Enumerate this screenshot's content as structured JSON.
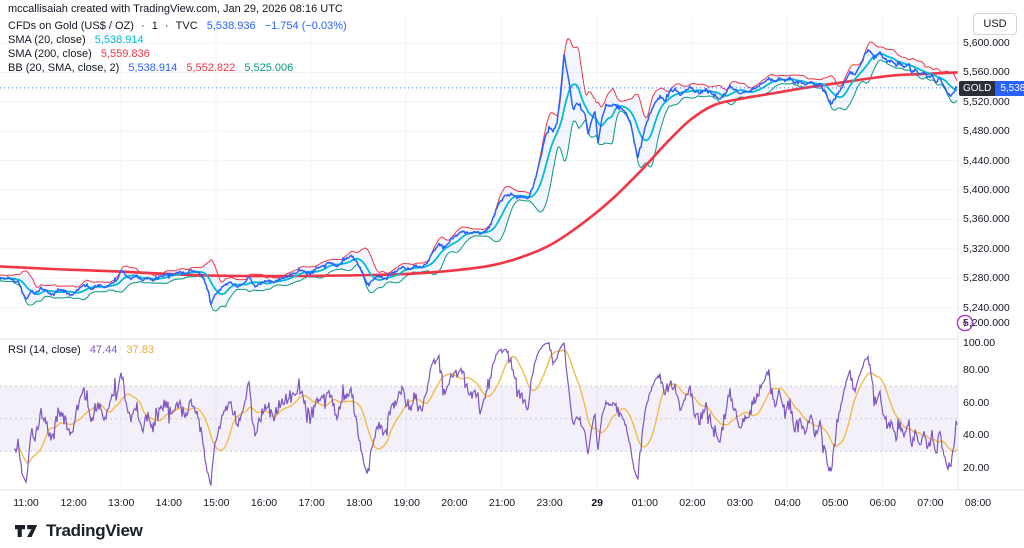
{
  "attribution": "mccallisaiah created with TradingView.com, Jan 29, 2026 08:16 UTC",
  "legend": {
    "main": {
      "title": "CFDs on Gold (US$ / OZ)",
      "separator": "·",
      "interval": "1",
      "exchange": "TVC",
      "price": "5,538.936",
      "change": "−1.754 (−0.03%)"
    },
    "sma20": {
      "label": "SMA (20, close)",
      "value": "5,538.914"
    },
    "sma200": {
      "label": "SMA (200, close)",
      "value": "5,559.836"
    },
    "bb": {
      "label": "BB (20, SMA, close, 2)",
      "basis": "5,538.914",
      "upper": "5,552.822",
      "lower": "5,525.006"
    },
    "rsi": {
      "label": "RSI (14, close)",
      "value": "47.44",
      "ma": "37.83"
    }
  },
  "price_axis": {
    "currency_button": "USD",
    "symbol_badge": "GOLD",
    "last_price_value": "5,538.936",
    "ticks": [
      "5,600.000",
      "5,560.000",
      "5,520.000",
      "5,480.000",
      "5,440.000",
      "5,400.000",
      "5,360.000",
      "5,320.000",
      "5,280.000",
      "5,240.000",
      "5,200.000"
    ]
  },
  "rsi_axis": {
    "ticks": [
      "100.00",
      "80.00",
      "60.00",
      "40.00",
      "20.00"
    ]
  },
  "time_axis": {
    "labels": [
      {
        "text": "11:00"
      },
      {
        "text": "12:00"
      },
      {
        "text": "13:00"
      },
      {
        "text": "14:00"
      },
      {
        "text": "15:00"
      },
      {
        "text": "16:00"
      },
      {
        "text": "17:00"
      },
      {
        "text": "18:00"
      },
      {
        "text": "19:00"
      },
      {
        "text": "20:00"
      },
      {
        "text": "21:00"
      },
      {
        "text": "23:00"
      },
      {
        "text": "29",
        "bold": true
      },
      {
        "text": "01:00"
      },
      {
        "text": "02:00"
      },
      {
        "text": "03:00"
      },
      {
        "text": "04:00"
      },
      {
        "text": "05:00"
      },
      {
        "text": "06:00"
      },
      {
        "text": "07:00"
      },
      {
        "text": "08:00"
      }
    ]
  },
  "footer": {
    "brand": "TradingView"
  },
  "colors": {
    "price_line": "#2962FF",
    "sma20": "#00BCD4",
    "sma200": "#F23645",
    "bb_upper": "#F23645",
    "bb_lower": "#089981",
    "bb_fill": "rgba(41,98,255,0.055)",
    "rsi_line": "#7E57C2",
    "rsi_ma": "#EFBD4C",
    "rsi_band_fill": "rgba(126,87,194,0.09)",
    "band_dash": "#C9CBD2",
    "grid": "#F0F3FA",
    "axis_border": "#E0E3EB",
    "badge_symbol_bg": "#2A2E39",
    "badge_price_bg": "#2962FF",
    "bolt": "#AB36C9"
  },
  "chart_data": {
    "type": "line",
    "title": "CFDs on Gold (US$ / OZ) · 1 · TVC",
    "ylabel": "USD",
    "last_price": 5538.936,
    "change": -1.754,
    "change_pct": -0.03,
    "price_ticks": [
      5600,
      5560,
      5520,
      5480,
      5440,
      5400,
      5360,
      5320,
      5280,
      5240,
      5200
    ],
    "rsi_ticks": [
      100,
      80,
      60,
      40,
      20
    ],
    "rsi_band": [
      30,
      70
    ],
    "rsi_last": 47.44,
    "rsi_ma_last": 37.83,
    "sma20_last": 5538.914,
    "sma200_last": 5559.836,
    "bb_last": {
      "basis": 5538.914,
      "upper": 5552.822,
      "lower": 5525.006
    },
    "x_labels": [
      "11:00",
      "12:00",
      "13:00",
      "14:00",
      "15:00",
      "16:00",
      "17:00",
      "18:00",
      "19:00",
      "20:00",
      "21:00",
      "23:00",
      "29",
      "01:00",
      "02:00",
      "03:00",
      "04:00",
      "05:00",
      "06:00",
      "07:00",
      "08:00"
    ],
    "indicators": [
      "SMA (20, close)",
      "SMA (200, close)",
      "BB (20, SMA, close, 2)",
      "RSI (14, close)"
    ],
    "price_anchors": [
      [
        0,
        5280
      ],
      [
        8,
        5280
      ],
      [
        14,
        5277
      ],
      [
        20,
        5270
      ],
      [
        24,
        5256
      ],
      [
        27,
        5251
      ],
      [
        31,
        5263
      ],
      [
        36,
        5259
      ],
      [
        41,
        5267
      ],
      [
        47,
        5262
      ],
      [
        53,
        5257
      ],
      [
        59,
        5265
      ],
      [
        65,
        5262
      ],
      [
        71,
        5257
      ],
      [
        77,
        5263
      ],
      [
        84,
        5270
      ],
      [
        91,
        5266
      ],
      [
        98,
        5271
      ],
      [
        105,
        5268
      ],
      [
        111,
        5273
      ],
      [
        117,
        5278
      ],
      [
        121,
        5292
      ],
      [
        125,
        5287
      ],
      [
        130,
        5279
      ],
      [
        136,
        5283
      ],
      [
        142,
        5277
      ],
      [
        148,
        5281
      ],
      [
        154,
        5277
      ],
      [
        160,
        5282
      ],
      [
        166,
        5286
      ],
      [
        172,
        5283
      ],
      [
        179,
        5288
      ],
      [
        186,
        5287
      ],
      [
        192,
        5291
      ],
      [
        198,
        5289
      ],
      [
        203,
        5282
      ],
      [
        208,
        5262
      ],
      [
        211,
        5243
      ],
      [
        214,
        5256
      ],
      [
        219,
        5263
      ],
      [
        225,
        5271
      ],
      [
        231,
        5274
      ],
      [
        237,
        5267
      ],
      [
        243,
        5272
      ],
      [
        249,
        5281
      ],
      [
        255,
        5269
      ],
      [
        261,
        5273
      ],
      [
        267,
        5277
      ],
      [
        274,
        5274
      ],
      [
        281,
        5280
      ],
      [
        288,
        5283
      ],
      [
        295,
        5287
      ],
      [
        302,
        5291
      ],
      [
        309,
        5287
      ],
      [
        316,
        5293
      ],
      [
        323,
        5297
      ],
      [
        330,
        5301
      ],
      [
        337,
        5296
      ],
      [
        344,
        5305
      ],
      [
        351,
        5311
      ],
      [
        357,
        5303
      ],
      [
        363,
        5285
      ],
      [
        368,
        5269
      ],
      [
        373,
        5278
      ],
      [
        379,
        5283
      ],
      [
        385,
        5279
      ],
      [
        391,
        5286
      ],
      [
        397,
        5291
      ],
      [
        403,
        5295
      ],
      [
        409,
        5292
      ],
      [
        415,
        5297
      ],
      [
        421,
        5294
      ],
      [
        427,
        5300
      ],
      [
        433,
        5315
      ],
      [
        439,
        5326
      ],
      [
        445,
        5321
      ],
      [
        451,
        5333
      ],
      [
        457,
        5339
      ],
      [
        463,
        5344
      ],
      [
        469,
        5340
      ],
      [
        475,
        5344
      ],
      [
        481,
        5341
      ],
      [
        487,
        5347
      ],
      [
        493,
        5362
      ],
      [
        499,
        5382
      ],
      [
        505,
        5391
      ],
      [
        511,
        5394
      ],
      [
        517,
        5389
      ],
      [
        523,
        5391
      ],
      [
        528,
        5387
      ],
      [
        534,
        5408
      ],
      [
        540,
        5441
      ],
      [
        545,
        5470
      ],
      [
        549,
        5486
      ],
      [
        553,
        5480
      ],
      [
        557,
        5490
      ],
      [
        561,
        5538
      ],
      [
        564,
        5585
      ],
      [
        567,
        5562
      ],
      [
        570,
        5538
      ],
      [
        573,
        5507
      ],
      [
        577,
        5519
      ],
      [
        581,
        5511
      ],
      [
        585,
        5502
      ],
      [
        588,
        5477
      ],
      [
        592,
        5497
      ],
      [
        595,
        5509
      ],
      [
        598,
        5464
      ],
      [
        602,
        5499
      ],
      [
        606,
        5515
      ],
      [
        611,
        5514
      ],
      [
        616,
        5517
      ],
      [
        621,
        5511
      ],
      [
        626,
        5506
      ],
      [
        631,
        5489
      ],
      [
        635,
        5461
      ],
      [
        638,
        5444
      ],
      [
        642,
        5468
      ],
      [
        646,
        5489
      ],
      [
        650,
        5504
      ],
      [
        655,
        5517
      ],
      [
        660,
        5527
      ],
      [
        665,
        5521
      ],
      [
        670,
        5533
      ],
      [
        675,
        5537
      ],
      [
        680,
        5529
      ],
      [
        685,
        5534
      ],
      [
        690,
        5541
      ],
      [
        695,
        5533
      ],
      [
        700,
        5532
      ],
      [
        705,
        5537
      ],
      [
        710,
        5534
      ],
      [
        715,
        5527
      ],
      [
        720,
        5523
      ],
      [
        725,
        5531
      ],
      [
        730,
        5541
      ],
      [
        735,
        5537
      ],
      [
        740,
        5531
      ],
      [
        745,
        5533
      ],
      [
        750,
        5535
      ],
      [
        755,
        5539
      ],
      [
        760,
        5543
      ],
      [
        765,
        5548
      ],
      [
        770,
        5552
      ],
      [
        775,
        5548
      ],
      [
        780,
        5553
      ],
      [
        785,
        5549
      ],
      [
        790,
        5552
      ],
      [
        795,
        5546
      ],
      [
        800,
        5548
      ],
      [
        805,
        5542
      ],
      [
        810,
        5547
      ],
      [
        815,
        5542
      ],
      [
        820,
        5545
      ],
      [
        825,
        5536
      ],
      [
        829,
        5521
      ],
      [
        832,
        5517
      ],
      [
        835,
        5526
      ],
      [
        839,
        5534
      ],
      [
        843,
        5543
      ],
      [
        847,
        5553
      ],
      [
        851,
        5560
      ],
      [
        855,
        5557
      ],
      [
        859,
        5567
      ],
      [
        863,
        5578
      ],
      [
        866,
        5588
      ],
      [
        869,
        5590
      ],
      [
        872,
        5584
      ],
      [
        876,
        5580
      ],
      [
        880,
        5587
      ],
      [
        884,
        5581
      ],
      [
        888,
        5574
      ],
      [
        892,
        5577
      ],
      [
        896,
        5570
      ],
      [
        900,
        5573
      ],
      [
        904,
        5566
      ],
      [
        908,
        5570
      ],
      [
        912,
        5561
      ],
      [
        916,
        5564
      ],
      [
        920,
        5556
      ],
      [
        924,
        5560
      ],
      [
        928,
        5553
      ],
      [
        932,
        5556
      ],
      [
        936,
        5547
      ],
      [
        940,
        5551
      ],
      [
        944,
        5542
      ],
      [
        948,
        5531
      ],
      [
        951,
        5527
      ],
      [
        954,
        5534
      ],
      [
        957,
        5538.936
      ]
    ],
    "sma200_anchors": [
      [
        0,
        5296
      ],
      [
        60,
        5292
      ],
      [
        120,
        5289
      ],
      [
        180,
        5285
      ],
      [
        240,
        5283
      ],
      [
        300,
        5283
      ],
      [
        360,
        5284
      ],
      [
        410,
        5286
      ],
      [
        450,
        5290
      ],
      [
        490,
        5297
      ],
      [
        520,
        5308
      ],
      [
        550,
        5325
      ],
      [
        580,
        5352
      ],
      [
        610,
        5385
      ],
      [
        640,
        5425
      ],
      [
        665,
        5462
      ],
      [
        690,
        5495
      ],
      [
        715,
        5516
      ],
      [
        745,
        5525
      ],
      [
        775,
        5532
      ],
      [
        805,
        5539
      ],
      [
        835,
        5545
      ],
      [
        865,
        5551
      ],
      [
        895,
        5556
      ],
      [
        925,
        5558
      ],
      [
        957,
        5560
      ]
    ]
  }
}
